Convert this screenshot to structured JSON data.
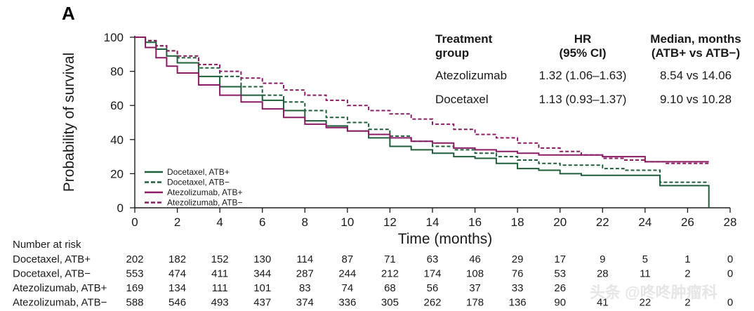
{
  "panel_label": "A",
  "watermark": "头条 @咚咚肿瘤科",
  "colors": {
    "docetaxel": "#1e5e3a",
    "atezolizumab": "#8a1c66",
    "text": "#1a1a1a"
  },
  "chart_data": {
    "type": "line",
    "subtype": "kaplan-meier",
    "title": "",
    "xlabel": "Time (months)",
    "ylabel": "Probability of survival",
    "xlim": [
      0,
      28
    ],
    "ylim": [
      0,
      100
    ],
    "x_ticks": [
      0,
      2,
      4,
      6,
      8,
      10,
      12,
      14,
      16,
      18,
      20,
      22,
      24,
      26,
      28
    ],
    "y_ticks": [
      0,
      20,
      40,
      60,
      80,
      100
    ],
    "grid": false,
    "legend_position": "bottom-left",
    "series": [
      {
        "name": "Docetaxel, ATB+",
        "color": "#1e5e3a",
        "dash": false,
        "x": [
          0,
          0.5,
          1,
          1.5,
          2,
          3,
          4,
          5,
          6,
          7,
          8,
          9,
          10,
          11,
          12,
          13,
          14,
          15,
          16,
          17,
          18,
          19,
          20,
          21,
          22,
          23,
          24,
          24.7,
          25.5,
          26.5,
          27
        ],
        "y": [
          100,
          97,
          93,
          89,
          85,
          77,
          71,
          66,
          63,
          57,
          51,
          48,
          45,
          41,
          36,
          34,
          32,
          30,
          29,
          26,
          23,
          22,
          20,
          19,
          19,
          19,
          19,
          13,
          13,
          13,
          0
        ]
      },
      {
        "name": "Docetaxel, ATB−",
        "color": "#1e5e3a",
        "dash": true,
        "x": [
          0,
          0.5,
          1,
          1.5,
          2,
          3,
          4,
          5,
          6,
          7,
          8,
          9,
          10,
          11,
          12,
          13,
          14,
          15,
          16,
          17,
          18,
          19,
          20,
          21,
          22,
          23,
          24,
          24.7,
          25.5,
          26.5,
          27
        ],
        "y": [
          100,
          98,
          95,
          92,
          88,
          82,
          77,
          71,
          66,
          62,
          57,
          53,
          50,
          46,
          42,
          39,
          36,
          34,
          32,
          30,
          28,
          26,
          25,
          25,
          23,
          22,
          22,
          15,
          15,
          15,
          15
        ]
      },
      {
        "name": "Atezolizumab, ATB+",
        "color": "#8a1c66",
        "dash": false,
        "x": [
          0,
          0.5,
          1,
          1.5,
          2,
          3,
          4,
          5,
          6,
          7,
          8,
          9,
          10,
          11,
          12,
          13,
          14,
          15,
          16,
          17,
          18,
          19,
          20,
          21,
          22,
          23,
          24,
          25,
          26,
          27
        ],
        "y": [
          100,
          94,
          88,
          83,
          79,
          72,
          66,
          62,
          58,
          53,
          49,
          47,
          45,
          43,
          41,
          39,
          38,
          35,
          34,
          33,
          32,
          31,
          31,
          31,
          30,
          30,
          27,
          27,
          27,
          27
        ]
      },
      {
        "name": "Atezolizumab, ATB−",
        "color": "#8a1c66",
        "dash": true,
        "x": [
          0,
          0.5,
          1,
          1.5,
          2,
          3,
          4,
          5,
          6,
          7,
          8,
          9,
          10,
          11,
          12,
          13,
          14,
          15,
          16,
          17,
          18,
          19,
          20,
          21,
          22,
          23,
          24,
          25,
          26,
          27
        ],
        "y": [
          100,
          98,
          95,
          92,
          89,
          84,
          80,
          76,
          73,
          69,
          66,
          63,
          60,
          57,
          55,
          52,
          49,
          46,
          43,
          41,
          38,
          35,
          33,
          31,
          29,
          28,
          27,
          26,
          26,
          26
        ]
      }
    ],
    "hr_table": {
      "headers": [
        "Treatment group",
        "HR (95% CI)",
        "Median, months (ATB+ vs ATB−)"
      ],
      "rows": [
        [
          "Atezolizumab",
          "1.32 (1.06–1.63)",
          "8.54 vs 14.06"
        ],
        [
          "Docetaxel",
          "1.13 (0.93–1.37)",
          "9.10 vs 10.28"
        ]
      ]
    },
    "risk_table": {
      "title": "Number at risk",
      "times": [
        0,
        2,
        4,
        6,
        8,
        10,
        12,
        14,
        16,
        18,
        20,
        22,
        24,
        26,
        28
      ],
      "rows": [
        {
          "label": "Docetaxel, ATB+",
          "values": [
            "202",
            "182",
            "152",
            "130",
            "114",
            "87",
            "71",
            "63",
            "46",
            "29",
            "17",
            "9",
            "5",
            "1",
            "0"
          ]
        },
        {
          "label": "Docetaxel, ATB−",
          "values": [
            "553",
            "474",
            "411",
            "344",
            "287",
            "244",
            "212",
            "174",
            "108",
            "76",
            "53",
            "28",
            "11",
            "2",
            "0"
          ]
        },
        {
          "label": "Atezolizumab, ATB+",
          "values": [
            "169",
            "134",
            "111",
            "101",
            "83",
            "74",
            "68",
            "56",
            "37",
            "33",
            "26",
            "",
            "",
            "",
            ""
          ]
        },
        {
          "label": "Atezolizumab, ATB−",
          "values": [
            "588",
            "546",
            "493",
            "437",
            "374",
            "336",
            "305",
            "262",
            "178",
            "136",
            "90",
            "41",
            "22",
            "2",
            "0"
          ]
        }
      ]
    }
  }
}
